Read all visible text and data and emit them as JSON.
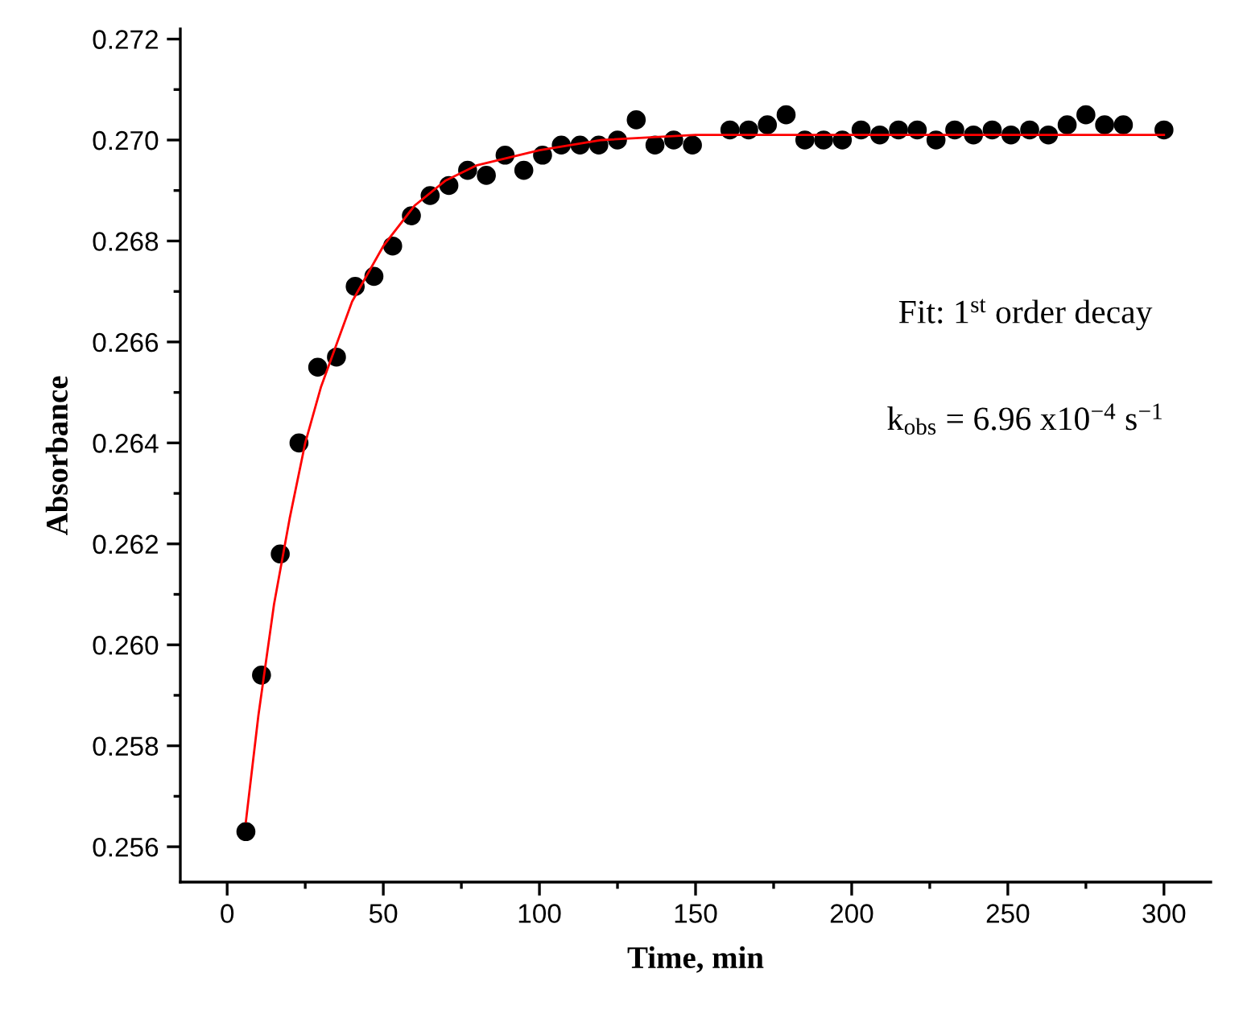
{
  "chart_data": {
    "type": "scatter",
    "xlabel": "Time, min",
    "ylabel": "Absorbance",
    "xlim": [
      -15,
      315
    ],
    "xticks": [
      0,
      50,
      100,
      150,
      200,
      250,
      300
    ],
    "ylim": [
      0.2553,
      0.2722
    ],
    "yticks": [
      0.256,
      0.258,
      {
        "value": 0.26,
        "label": "0.260"
      },
      0.262,
      0.264,
      0.266,
      0.268,
      {
        "value": 0.27,
        "label": "0.270"
      },
      0.272
    ],
    "grid": false,
    "marker": "circle",
    "series": [
      {
        "color": "#000000",
        "x": [
          6,
          11,
          17,
          23,
          29,
          35,
          41,
          47,
          53,
          59,
          65,
          71,
          77,
          83,
          89,
          95,
          101,
          107,
          113,
          119,
          125,
          131,
          137,
          143,
          149,
          161,
          167,
          173,
          179,
          185,
          191,
          197,
          203,
          209,
          215,
          221,
          227,
          233,
          239,
          245,
          251,
          257,
          263,
          269,
          275,
          281,
          287,
          300
        ],
        "values": [
          0.2563,
          0.2594,
          0.2618,
          0.264,
          0.2655,
          0.2657,
          0.2671,
          0.2673,
          0.2679,
          0.2685,
          0.2689,
          0.2691,
          0.2694,
          0.2693,
          0.2697,
          0.2694,
          0.2697,
          0.2699,
          0.2699,
          0.2699,
          0.27,
          0.2704,
          0.2699,
          0.27,
          0.2699,
          0.2702,
          0.2702,
          0.2703,
          0.2705,
          0.27,
          0.27,
          0.27,
          0.2702,
          0.2701,
          0.2702,
          0.2702,
          0.27,
          0.2702,
          0.2701,
          0.2702,
          0.2701,
          0.2702,
          0.2701,
          0.2703,
          0.2705,
          0.2703,
          0.2703,
          0.2702
        ]
      },
      {
        "type": "line",
        "color": "#ff0000",
        "marker": "none",
        "line_style": "solid",
        "x": [
          6,
          10,
          15,
          20,
          25,
          30,
          40,
          50,
          60,
          70,
          80,
          100,
          120,
          150,
          200,
          300
        ],
        "values": [
          0.2565,
          0.2586,
          0.2608,
          0.2625,
          0.264,
          0.2651,
          0.2668,
          0.2679,
          0.2687,
          0.2692,
          0.2695,
          0.2698,
          0.27,
          0.2701,
          0.2701,
          0.2701
        ]
      }
    ],
    "annotations": [
      "Fit: 1$^{st}$ order decay",
      "k$_{obs}$ = 6.96 x10$^{−4}$ s$^{−1}$"
    ]
  }
}
